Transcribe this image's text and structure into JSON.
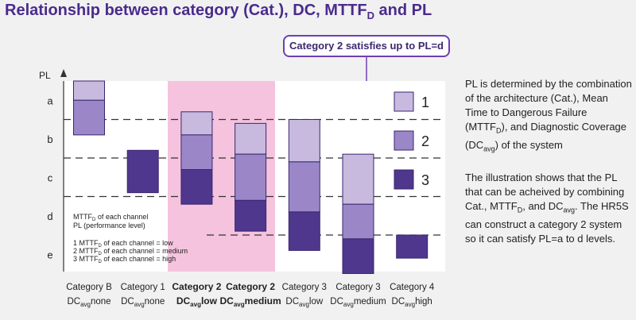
{
  "title": {
    "prefix": "Relationship between category (Cat.), DC, MTTF",
    "sub": "D",
    "suffix": " and PL"
  },
  "callout": "Category 2 satisfies up to PL=d",
  "legend_keys": [
    "1",
    "2",
    "3"
  ],
  "note_lines": {
    "h1a": "MTTF",
    "h1b": "D",
    "h1c": " of each channel",
    "h2": "PL (performance level)",
    "l1n": "1 MTTF",
    "l1s": "D",
    "l1t": " of each channel = low",
    "l2n": "2 MTTF",
    "l2s": "D",
    "l2t": " of each channel = medium",
    "l3n": "3 MTTF",
    "l3s": "D",
    "l3t": " of each channel = high"
  },
  "description": {
    "p1a": "PL is determined by the combination of the architecture (Cat.), Mean Time to Dangerous Failure (MTTF",
    "p1b": "D",
    "p1c": "), and Diagnostic Coverage (DC",
    "p1d": "avg",
    "p1e": ") of the system",
    "p2a": "The illustration shows that the PL that can be acheived by combining Cat., MTTF",
    "p2b": "D",
    "p2c": ", and DC",
    "p2d": "avg",
    "p2e": ". The HR5S can construct a category 2 system so it can satisfy PL=a to d levels."
  },
  "colors": {
    "light": "#c7bade",
    "medium": "#9b87c8",
    "dark": "#4f378d",
    "highlight": "#f5c3de",
    "title": "#4a2b8c"
  },
  "chart_data": {
    "type": "range-bar",
    "ylabel": "PL",
    "pl_levels": [
      "a",
      "b",
      "c",
      "d",
      "e"
    ],
    "categories": [
      {
        "line1": "Category B",
        "line2a": "DC",
        "line2b": "avg",
        "line2c": "none",
        "bold": false,
        "highlight": false
      },
      {
        "line1": "Category 1",
        "line2a": "DC",
        "line2b": "avg",
        "line2c": "none",
        "bold": false,
        "highlight": false
      },
      {
        "line1": "Category 2",
        "line2a": "DC",
        "line2b": "avg",
        "line2c": "low",
        "bold": true,
        "highlight": true
      },
      {
        "line1": "Category 2",
        "line2a": "DC",
        "line2b": "avg",
        "line2c": "medium",
        "bold": true,
        "highlight": true
      },
      {
        "line1": "Category 3",
        "line2a": "DC",
        "line2b": "avg",
        "line2c": "low",
        "bold": false,
        "highlight": false
      },
      {
        "line1": "Category 3",
        "line2a": "DC",
        "line2b": "avg",
        "line2c": "medium",
        "bold": false,
        "highlight": false
      },
      {
        "line1": "Category 4",
        "line2a": "DC",
        "line2b": "avg",
        "line2c": "high",
        "bold": false,
        "highlight": false
      }
    ],
    "thresholds": [
      1,
      2,
      3,
      4
    ],
    "segments": [
      {
        "cat": 0,
        "mttfd": "low",
        "from": 0.0,
        "to": 0.5
      },
      {
        "cat": 0,
        "mttfd": "medium",
        "from": 0.5,
        "to": 1.4
      },
      {
        "cat": 1,
        "mttfd": "high",
        "from": 1.8,
        "to": 2.9
      },
      {
        "cat": 2,
        "mttfd": "low",
        "from": 0.8,
        "to": 1.4
      },
      {
        "cat": 2,
        "mttfd": "medium",
        "from": 1.4,
        "to": 2.3
      },
      {
        "cat": 2,
        "mttfd": "high",
        "from": 2.3,
        "to": 3.2
      },
      {
        "cat": 3,
        "mttfd": "low",
        "from": 1.1,
        "to": 1.9
      },
      {
        "cat": 3,
        "mttfd": "medium",
        "from": 1.9,
        "to": 3.1
      },
      {
        "cat": 3,
        "mttfd": "high",
        "from": 3.1,
        "to": 3.9
      },
      {
        "cat": 4,
        "mttfd": "low",
        "from": 1.0,
        "to": 2.1
      },
      {
        "cat": 4,
        "mttfd": "medium",
        "from": 2.1,
        "to": 3.4
      },
      {
        "cat": 4,
        "mttfd": "high",
        "from": 3.4,
        "to": 4.4
      },
      {
        "cat": 5,
        "mttfd": "low",
        "from": 1.9,
        "to": 3.2
      },
      {
        "cat": 5,
        "mttfd": "medium",
        "from": 3.2,
        "to": 4.1
      },
      {
        "cat": 5,
        "mttfd": "high",
        "from": 4.1,
        "to": 5.0
      },
      {
        "cat": 6,
        "mttfd": "high",
        "from": 4.0,
        "to": 4.6
      }
    ],
    "legend": [
      {
        "label": "1",
        "mttfd": "low"
      },
      {
        "label": "2",
        "mttfd": "medium"
      },
      {
        "label": "3",
        "mttfd": "high"
      }
    ]
  }
}
